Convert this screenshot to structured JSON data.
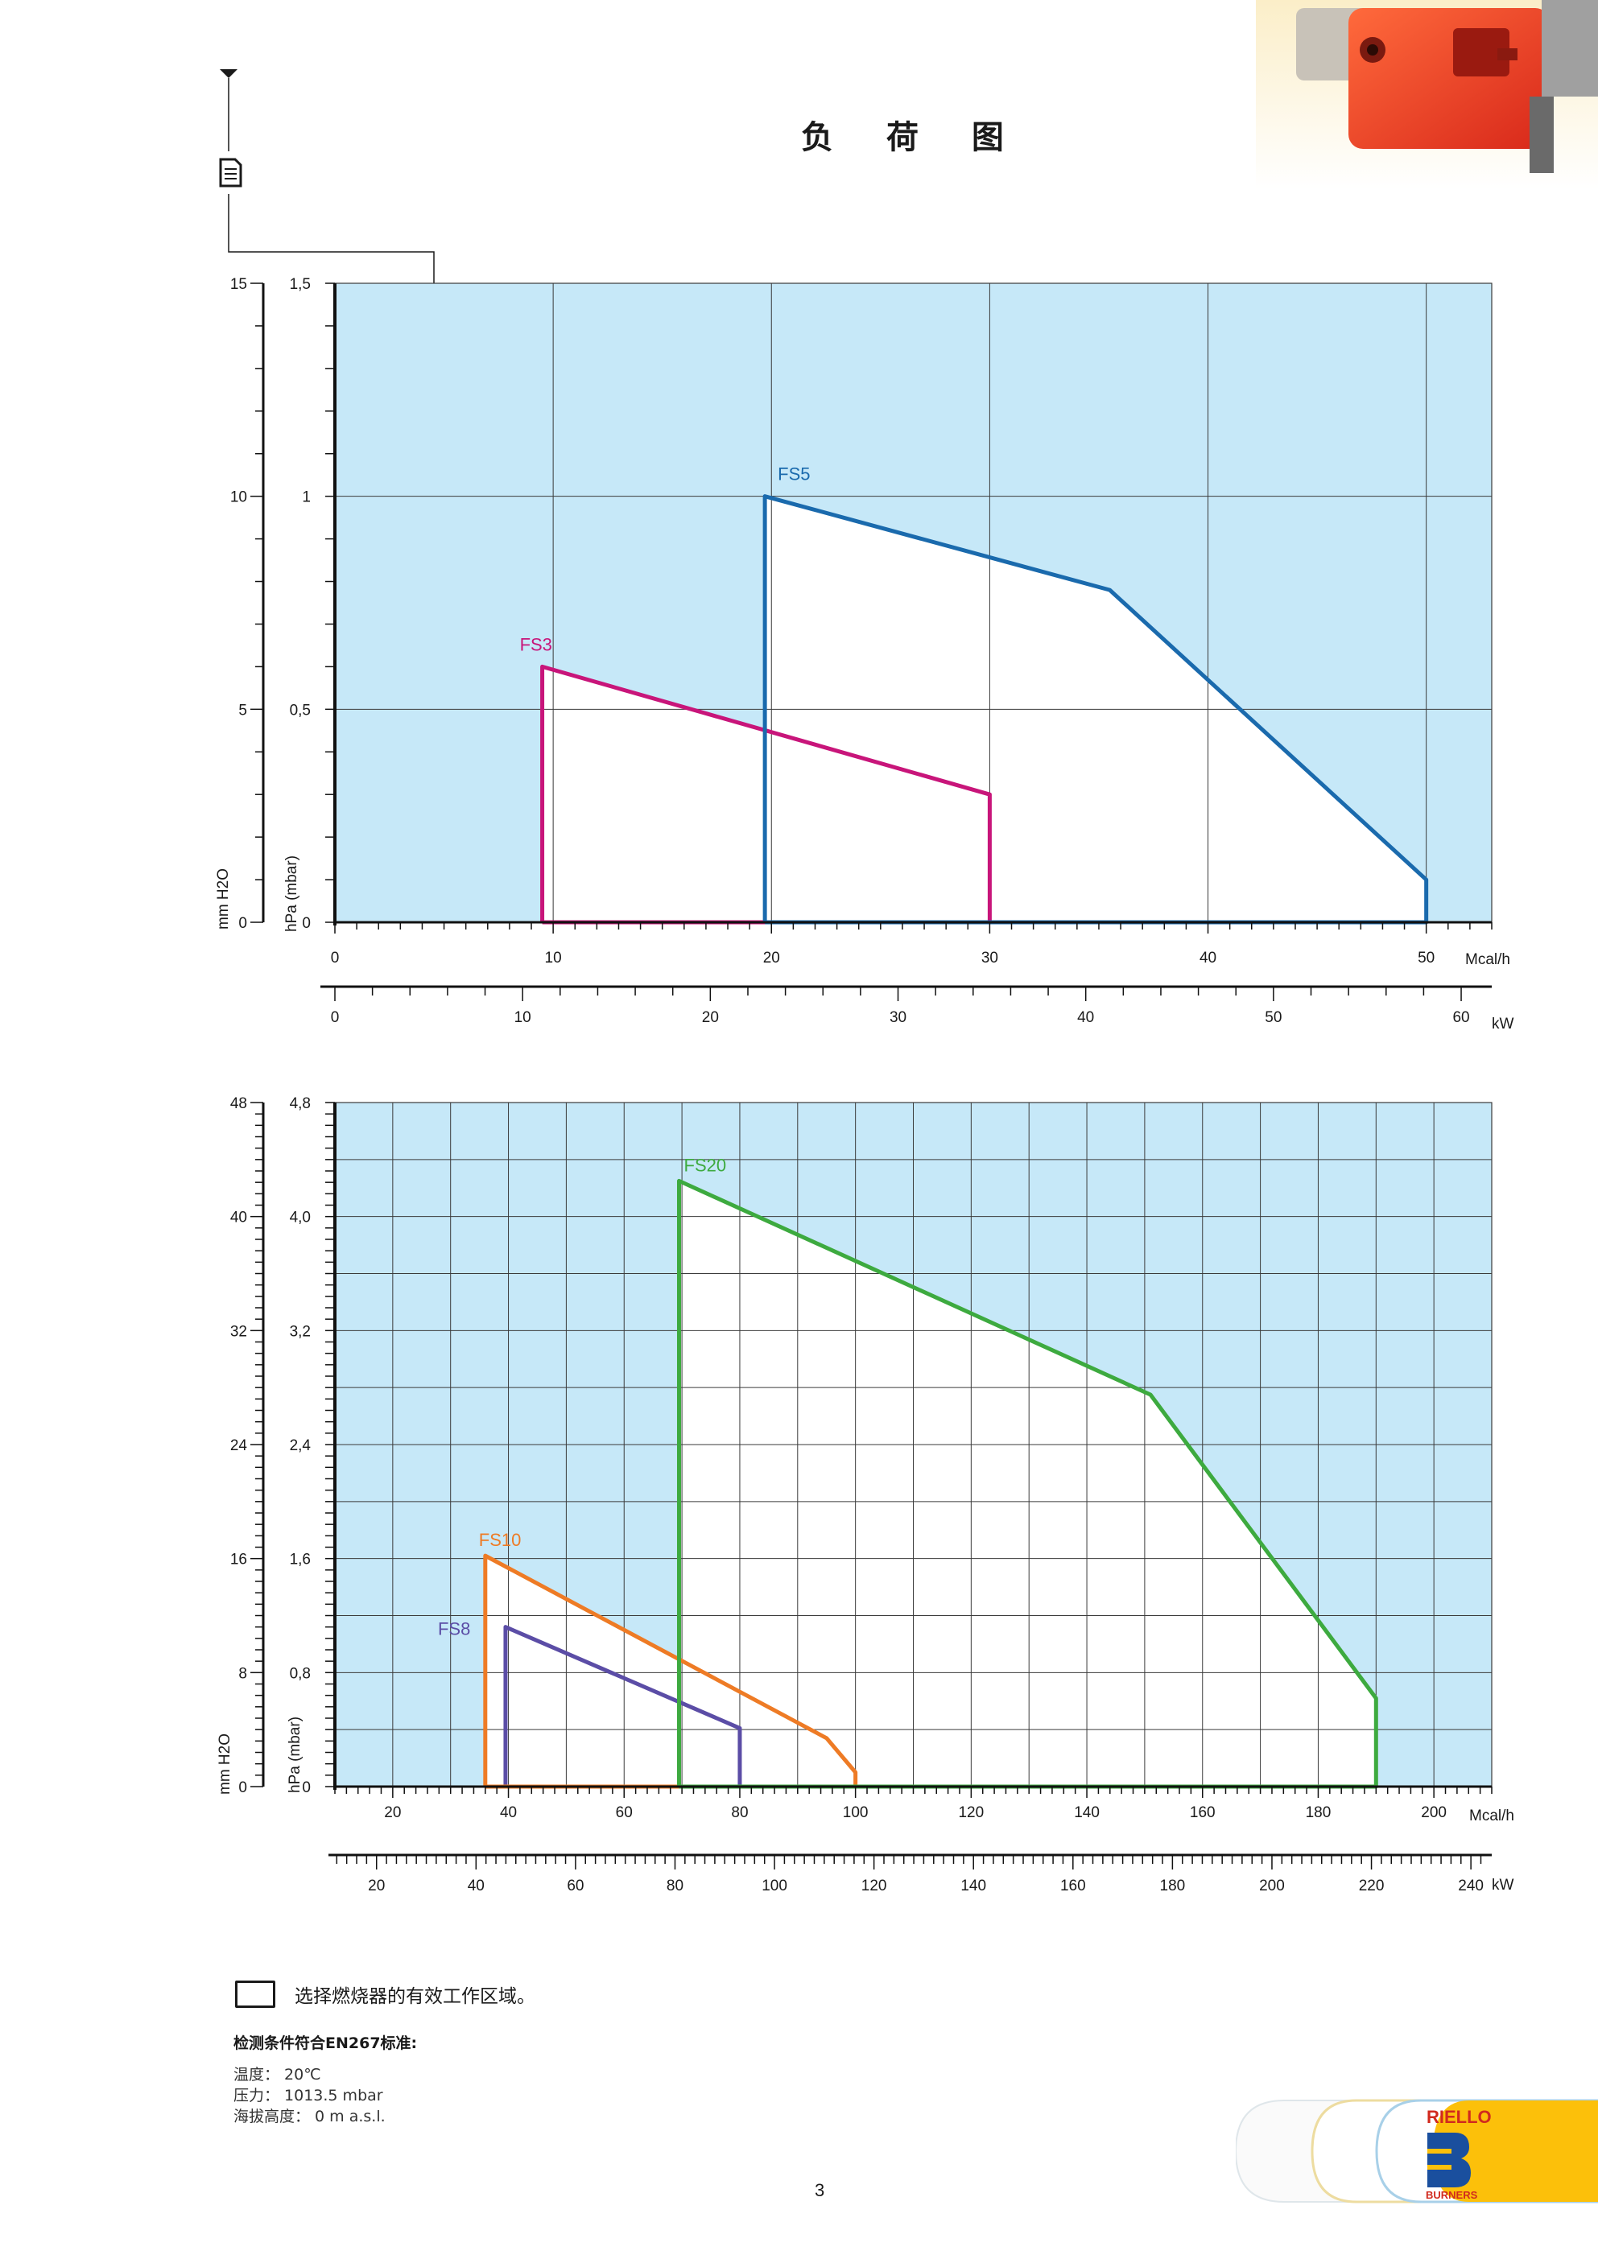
{
  "page": {
    "title": "负 荷 图",
    "number": "3"
  },
  "icons": {
    "doc_marker": "document-icon",
    "burner_photo": "burner-photo",
    "brand_logo": "riello-burners-logo"
  },
  "legend": {
    "text": "选择燃烧器的有效工作区域。"
  },
  "conditions": {
    "heading": "检测条件符合EN267标准:",
    "lines": [
      "温度： 20℃",
      "压力： 1013.5 mbar",
      "海拔高度： 0 m a.s.l."
    ]
  },
  "brand": {
    "name": "RIELLO",
    "sub": "BURNERS"
  },
  "colors": {
    "area_bg": "#c6e8f8",
    "FS3": "#c8157a",
    "FS5": "#1a6aad",
    "FS8": "#5b4da6",
    "FS10": "#ee7b25",
    "FS20": "#3daa3f"
  },
  "chart_data": [
    {
      "type": "area",
      "xlabel": "Mcal/h",
      "x2label": "kW",
      "ylabel": "hPa (mbar)",
      "y2label": "mm H2O",
      "xlim": [
        0,
        53
      ],
      "ylim": [
        0,
        1.5
      ],
      "x_ticks": [
        "0",
        "10",
        "20",
        "30",
        "40",
        "50"
      ],
      "x_tick_values": [
        0,
        10,
        20,
        30,
        40,
        50
      ],
      "kw_ticks": [
        "0",
        "10",
        "20",
        "30",
        "40",
        "50",
        "60"
      ],
      "kw_tick_values": [
        0,
        10,
        20,
        30,
        40,
        50,
        60
      ],
      "y_ticks": [
        "0",
        "0,5",
        "1",
        "1,5"
      ],
      "y_tick_values": [
        0,
        0.5,
        1,
        1.5
      ],
      "y2_ticks": [
        "0",
        "5",
        "10",
        "15"
      ],
      "series": [
        {
          "name": "FS3",
          "x": [
            9.5,
            9.5,
            30,
            30
          ],
          "y": [
            0,
            0.6,
            0.3,
            0
          ]
        },
        {
          "name": "FS5",
          "x": [
            19.7,
            19.7,
            35.5,
            50,
            50
          ],
          "y": [
            0,
            1.0,
            0.78,
            0.1,
            0
          ]
        }
      ]
    },
    {
      "type": "area",
      "xlabel": "Mcal/h",
      "x2label": "kW",
      "ylabel": "hPa (mbar)",
      "y2label": "mm H2O",
      "xlim": [
        10,
        210
      ],
      "ylim": [
        0,
        4.8
      ],
      "x_ticks": [
        "20",
        "40",
        "60",
        "80",
        "100",
        "120",
        "140",
        "160",
        "180",
        "200"
      ],
      "x_tick_values": [
        20,
        40,
        60,
        80,
        100,
        120,
        140,
        160,
        180,
        200
      ],
      "kw_ticks": [
        "20",
        "40",
        "60",
        "80",
        "100",
        "120",
        "140",
        "160",
        "180",
        "200",
        "220",
        "240"
      ],
      "kw_tick_values": [
        20,
        40,
        60,
        80,
        100,
        120,
        140,
        160,
        180,
        200,
        220,
        240
      ],
      "y_ticks": [
        "0",
        "0,8",
        "1,6",
        "2,4",
        "3,2",
        "4,0",
        "4,8"
      ],
      "y_tick_values": [
        0,
        0.8,
        1.6,
        2.4,
        3.2,
        4.0,
        4.8
      ],
      "y2_ticks": [
        "0",
        "8",
        "16",
        "24",
        "32",
        "40",
        "48"
      ],
      "series": [
        {
          "name": "FS8",
          "x": [
            39.5,
            39.5,
            80,
            80
          ],
          "y": [
            0,
            1.12,
            0.41,
            0
          ]
        },
        {
          "name": "FS10",
          "x": [
            36,
            36,
            95,
            100,
            100
          ],
          "y": [
            0,
            1.62,
            0.34,
            0.1,
            0
          ]
        },
        {
          "name": "FS20",
          "x": [
            69.5,
            69.5,
            151,
            190,
            190
          ],
          "y": [
            0,
            4.25,
            2.75,
            0.62,
            0
          ]
        }
      ]
    }
  ]
}
